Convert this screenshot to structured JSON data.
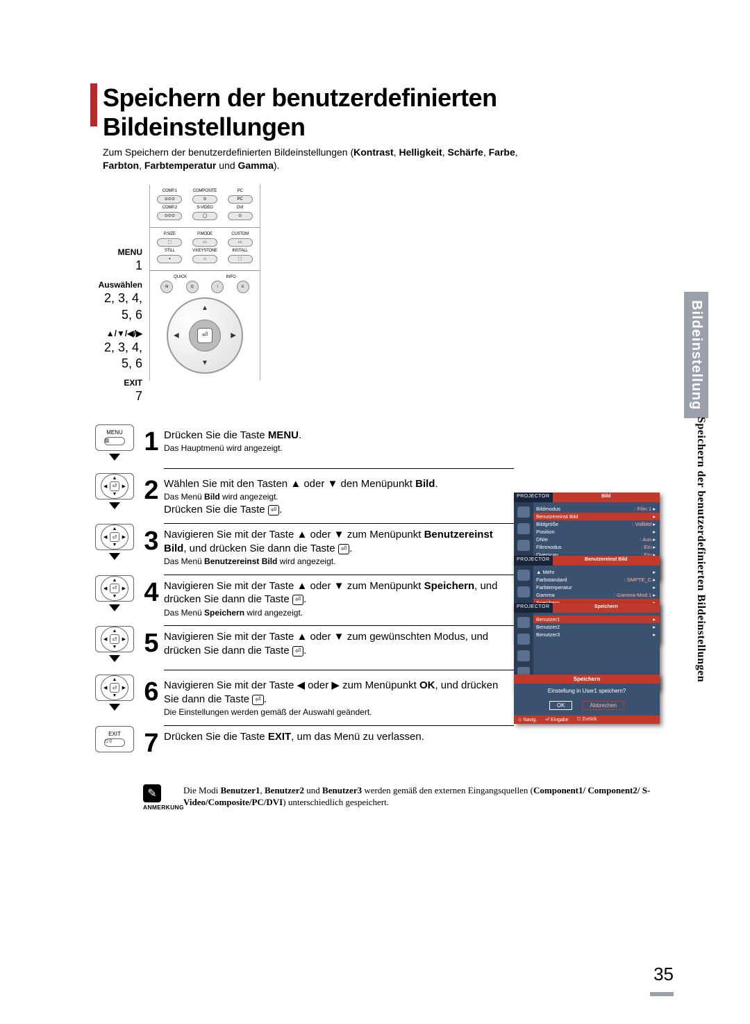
{
  "page": {
    "title": "Speichern der benutzerdefinierten Bildeinstellungen",
    "intro_pre": "Zum Speichern der benutzerdefinierten Bildeinstellungen (",
    "intro_bold1": "Kontrast",
    "intro_sep": ", ",
    "intro_bold2": "Helligkeit",
    "intro_bold3": "Schärfe",
    "intro_bold4": "Farbe",
    "intro_bold5": "Farbton",
    "intro_bold6": "Farbtemperatur",
    "intro_and": " und ",
    "intro_bold7": "Gamma",
    "intro_post": ").",
    "page_number": "35"
  },
  "sidebar": {
    "tab1": "Bildeinstellung",
    "tab2": "Speichern der benutzerdefinierten Bildeinstellungen"
  },
  "remote": {
    "labels": {
      "menu": "MENU",
      "menu_num": "1",
      "select": "Auswählen",
      "select_num": "2, 3, 4, 5, 6",
      "nav": "▲/▼/◀/▶",
      "nav_num": "2, 3, 4, 5, 6",
      "exit": "EXIT",
      "exit_num": "7"
    },
    "buttons_row1": [
      "COMP.1",
      "COMPOSITE",
      "PC"
    ],
    "buttons_row2": [
      "COMP.2",
      "S-VIDEO",
      "DVI"
    ],
    "buttons_row3": [
      "P.SIZE",
      "P.MODE",
      "CUSTOM"
    ],
    "buttons_row4": [
      "STILL",
      "V.KEYSTONE",
      "INSTALL"
    ],
    "small_row": [
      "QUICK",
      "INFO"
    ],
    "small_row2": [
      "MENU",
      "",
      "EXIT"
    ]
  },
  "steps": [
    {
      "num": "1",
      "icon": "menu",
      "icon_label": "MENU",
      "line1_pre": "Drücken Sie die Taste ",
      "line1_bold": "MENU",
      "line1_post": ".",
      "sub": "Das Hauptmenü wird angezeigt."
    },
    {
      "num": "2",
      "icon": "dpad",
      "line1_pre": "Wählen Sie mit den Tasten ▲ oder ▼ den Menüpunkt ",
      "line1_bold": "Bild",
      "line1_post": ".",
      "sub": "Das Menü Bild wird angezeigt.",
      "line2_pre": "Drücken Sie die Taste ",
      "line2_enter": true,
      "line2_post": "."
    },
    {
      "num": "3",
      "icon": "dpad",
      "line1_pre": "Navigieren Sie mit der Taste ▲ oder ▼ zum Menüpunkt ",
      "line1_bold": "Benutzereinst Bild",
      "line1_post": ", und drücken Sie dann die Taste ",
      "line1_enter": true,
      "line1_post2": ".",
      "sub": "Das Menü Benutzereinst Bild wird angezeigt."
    },
    {
      "num": "4",
      "icon": "dpad",
      "line1_pre": "Navigieren Sie mit der Taste ▲ oder ▼ zum Menüpunkt ",
      "line1_bold": "Speichern",
      "line1_post": ", und drücken Sie dann die Taste ",
      "line1_enter": true,
      "line1_post2": ".",
      "sub": "Das Menü Speichern wird angezeigt."
    },
    {
      "num": "5",
      "icon": "dpad",
      "line1_pre": "Navigieren Sie mit der Taste ▲ oder ▼ zum gewünschten Modus, und drücken Sie dann die Taste ",
      "line1_enter": true,
      "line1_post": "."
    },
    {
      "num": "6",
      "icon": "dpad",
      "line1_pre": "Navigieren Sie mit der Taste ◀ oder ▶ zum Menüpunkt ",
      "line1_bold": "OK",
      "line1_post": ", und drücken Sie dann die Taste ",
      "line1_enter": true,
      "line1_post2": ".",
      "sub": "Die Einstellungen werden gemäß der Auswahl geändert."
    },
    {
      "num": "7",
      "icon": "exit",
      "icon_label": "EXIT",
      "line1_pre": "Drücken Sie die Taste ",
      "line1_bold": "EXIT",
      "line1_post": ", um das Menü zu verlassen."
    }
  ],
  "osd1": {
    "projector": "PROJECTOR",
    "tab": "Bild",
    "items": [
      {
        "l": "Bildmodus",
        "r": ": Film 1"
      },
      {
        "l": "Benutzereinst Bild",
        "r": "",
        "hl": true
      },
      {
        "l": "Bildgröße",
        "r": ": Vollbild"
      },
      {
        "l": "Position",
        "r": ""
      },
      {
        "l": "DNIe",
        "r": ": Aus"
      },
      {
        "l": "Filmmodus",
        "r": ": Ein"
      },
      {
        "l": "Overscan",
        "r": ": Ein"
      }
    ],
    "footer": [
      "◇ Navig.",
      "⏎ Eingabe",
      "⎋ Zurück"
    ]
  },
  "osd2": {
    "projector": "PROJECTOR",
    "tab": "Benutzereinst Bild",
    "items": [
      {
        "l": "▲ Mehr",
        "r": ""
      },
      {
        "l": "Farbstandard",
        "r": ": SMPTE_C"
      },
      {
        "l": "Farbtemperatur",
        "r": ""
      },
      {
        "l": "Gamma",
        "r": ": Gamma-Mod.1"
      },
      {
        "l": "Speichern",
        "r": "",
        "hl": true
      }
    ],
    "footer": [
      "◇ Navig.",
      "⏎ Eingabe",
      "⎋ Zurück"
    ]
  },
  "osd3": {
    "projector": "PROJECTOR",
    "tab": "Speichern",
    "items": [
      {
        "l": "Benutzer1",
        "r": "",
        "hl": true
      },
      {
        "l": "Benutzer2",
        "r": ""
      },
      {
        "l": "Benutzer3",
        "r": ""
      }
    ],
    "footer": [
      "◇ Navig.",
      "⏎ Eingabe",
      "⎋ Zurück"
    ]
  },
  "dialog": {
    "title": "Speichern",
    "msg": "Einstellung in User1 speichern?",
    "ok": "OK",
    "cancel": "Abbrechen",
    "footer": [
      "◇ Navig.",
      "⏎ Eingabe",
      "⎋ Zurück"
    ]
  },
  "note": {
    "label": "ANMERKUNG",
    "text_pre": "Die Modi ",
    "b1": "Benutzer1",
    "b2": "Benutzer2",
    "text_and": " und ",
    "b3": "Benutzer3",
    "text_mid": " werden gemäß den externen Eingangsquellen (",
    "b4": "Component1/ Component2/ S-Video/Composite/PC/DVI",
    "text_post": ") unterschiedlich gespeichert."
  },
  "colors": {
    "accent": "#b7292d",
    "osd_bg": "#3b5170",
    "osd_dark": "#2a3b54",
    "osd_red": "#c0392b",
    "grey_tab": "#9aa1ab"
  }
}
